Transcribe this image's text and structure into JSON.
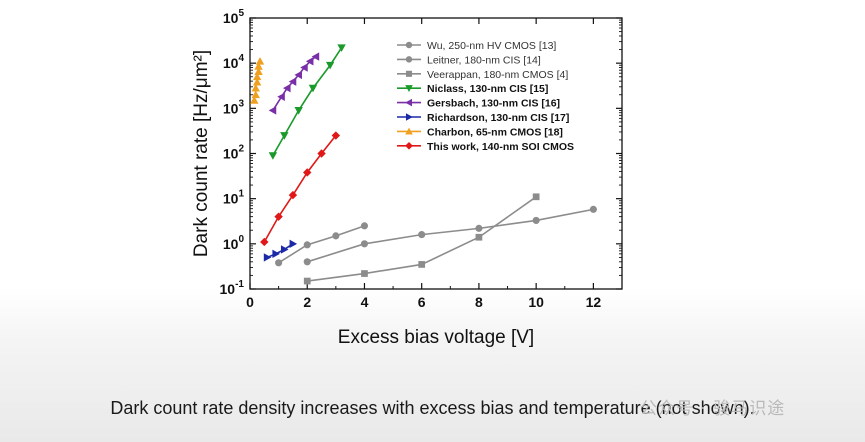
{
  "chart_data": {
    "type": "line",
    "yscale": "log",
    "xlabel": "Excess bias voltage [V]",
    "ylabel": "Dark count rate [Hz/μm²]",
    "xlim": [
      0,
      13
    ],
    "ylim": [
      0.1,
      100000
    ],
    "x_ticks": [
      "0",
      "2",
      "4",
      "6",
      "8",
      "10",
      "12"
    ],
    "y_ticks": [
      "10^-1",
      "10^0",
      "10^1",
      "10^2",
      "10^3",
      "10^4",
      "10^5"
    ],
    "legend_position": "top-right",
    "series": [
      {
        "name": "Wu, 250-nm HV CMOS [13]",
        "color": "#8c8c8c",
        "marker": "circle",
        "bold": false,
        "points": [
          [
            1,
            0.38
          ],
          [
            2,
            0.95
          ],
          [
            3,
            1.5
          ],
          [
            4,
            2.5
          ]
        ]
      },
      {
        "name": "Leitner, 180-nm CIS [14]",
        "color": "#8c8c8c",
        "marker": "circle",
        "bold": false,
        "points": [
          [
            2,
            0.4
          ],
          [
            4,
            1.0
          ],
          [
            6,
            1.6
          ],
          [
            8,
            2.2
          ],
          [
            10,
            3.3
          ],
          [
            12,
            5.8
          ]
        ]
      },
      {
        "name": "Veerappan, 180-nm CMOS [4]",
        "color": "#8c8c8c",
        "marker": "square",
        "bold": false,
        "points": [
          [
            2,
            0.15
          ],
          [
            4,
            0.22
          ],
          [
            6,
            0.35
          ],
          [
            8,
            1.4
          ],
          [
            10,
            11
          ]
        ]
      },
      {
        "name": "Niclass, 130-nm CIS [15]",
        "color": "#1a9a2a",
        "marker": "triangle-down",
        "bold": true,
        "points": [
          [
            0.8,
            90
          ],
          [
            1.2,
            250
          ],
          [
            1.7,
            900
          ],
          [
            2.2,
            2800
          ],
          [
            2.8,
            9000
          ],
          [
            3.2,
            22000
          ]
        ]
      },
      {
        "name": "Gersbach, 130-nm CIS [16]",
        "color": "#7a2fa8",
        "marker": "triangle-left",
        "bold": true,
        "points": [
          [
            0.8,
            900
          ],
          [
            1.1,
            1800
          ],
          [
            1.3,
            2800
          ],
          [
            1.5,
            3900
          ],
          [
            1.7,
            5500
          ],
          [
            1.9,
            8000
          ],
          [
            2.1,
            11000
          ],
          [
            2.3,
            14000
          ]
        ]
      },
      {
        "name": "Richardson, 130-nm CIS [17]",
        "color": "#1d2aa8",
        "marker": "triangle-right",
        "bold": true,
        "points": [
          [
            0.6,
            0.5
          ],
          [
            0.9,
            0.6
          ],
          [
            1.2,
            0.75
          ],
          [
            1.5,
            1.0
          ]
        ]
      },
      {
        "name": "Charbon, 65-nm CMOS [18]",
        "color": "#f0a020",
        "marker": "triangle-up",
        "bold": true,
        "points": [
          [
            0.15,
            1500
          ],
          [
            0.2,
            2000
          ],
          [
            0.2,
            2800
          ],
          [
            0.25,
            3800
          ],
          [
            0.25,
            5000
          ],
          [
            0.3,
            6500
          ],
          [
            0.3,
            8500
          ],
          [
            0.35,
            11000
          ]
        ]
      },
      {
        "name": "This work, 140-nm SOI CMOS",
        "color": "#e01818",
        "marker": "diamond",
        "bold": true,
        "points": [
          [
            0.5,
            1.1
          ],
          [
            1.0,
            4.0
          ],
          [
            1.5,
            12
          ],
          [
            2.0,
            38
          ],
          [
            2.5,
            100
          ],
          [
            3.0,
            250
          ]
        ]
      }
    ]
  },
  "caption": "Dark count rate density increases with excess bias and temperature (not shown).",
  "watermark": "公众号 · 骏马识途"
}
